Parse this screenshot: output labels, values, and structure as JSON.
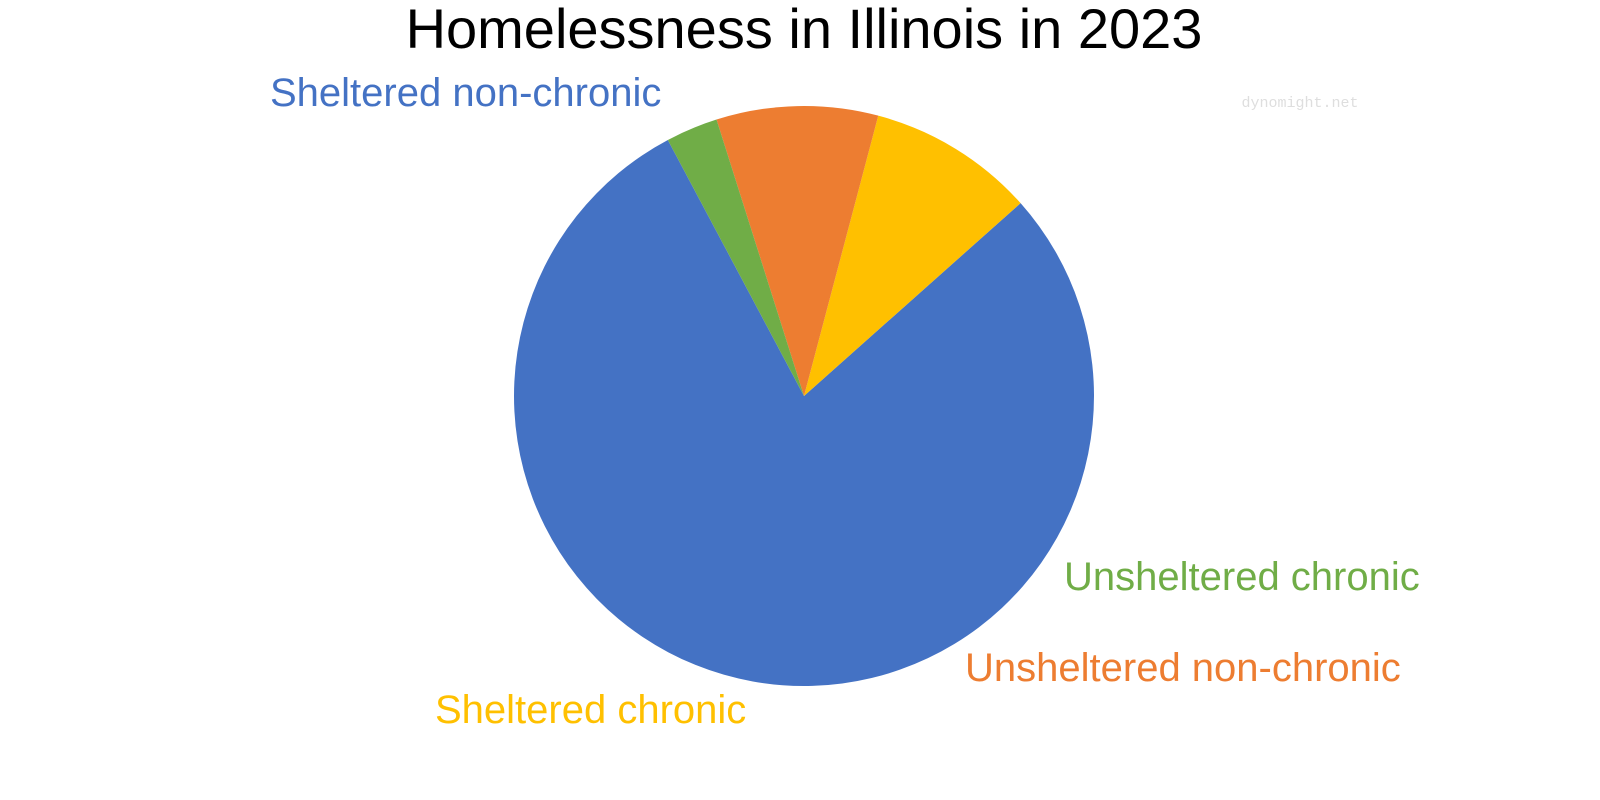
{
  "chart_data": {
    "type": "pie",
    "title": "Homelessness in Illinois in 2023",
    "watermark": "dynomight.net",
    "legend": "none",
    "start_angle_deg": 118,
    "direction": "counterclockwise",
    "slices": [
      {
        "label": "Sheltered non-chronic",
        "value": 78.8,
        "color": "#4472C4"
      },
      {
        "label": "Sheltered chronic",
        "value": 9.3,
        "color": "#FFC000"
      },
      {
        "label": "Unsheltered non-chronic",
        "value": 9.0,
        "color": "#ED7D31"
      },
      {
        "label": "Unsheltered chronic",
        "value": 2.9,
        "color": "#70AD47"
      }
    ]
  }
}
